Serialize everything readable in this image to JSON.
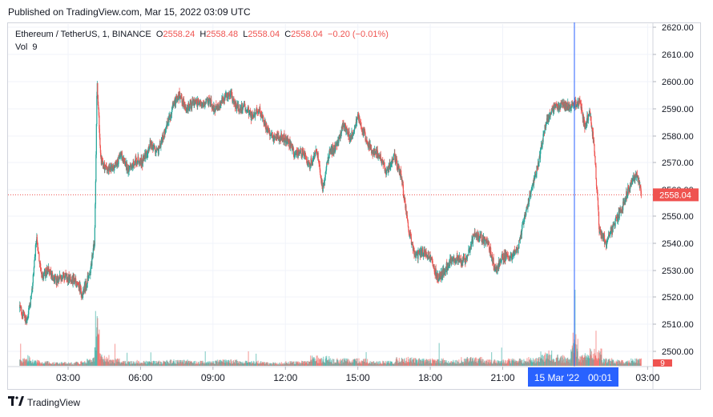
{
  "published": "Published on TradingView.com, Mar 15, 2022 03:09 UTC",
  "legend": {
    "symbol": "Ethereum / TetherUS, 1, BINANCE",
    "o_label": "O",
    "o_value": "2558.24",
    "h_label": "H",
    "h_value": "2558.48",
    "l_label": "L",
    "l_value": "2558.04",
    "c_label": "C",
    "c_value": "2558.04",
    "change": "−0.20 (−0.01%)",
    "vol_label": "Vol",
    "vol_value": "9"
  },
  "footer": {
    "brand": "TradingView",
    "logo_icon": "tradingview-logo-icon"
  },
  "colors": {
    "up": "#26a69a",
    "down": "#ef5350",
    "crosshair": "#2962ff",
    "grid": "#f0f3fa"
  },
  "chart_data": {
    "type": "candlestick",
    "interval": "1",
    "y_ticks": [
      "2620.00",
      "2610.00",
      "2600.00",
      "2590.00",
      "2580.00",
      "2570.00",
      "2560.00",
      "2550.00",
      "2540.00",
      "2530.00",
      "2520.00",
      "2510.00",
      "2500.00"
    ],
    "ylim": [
      2497,
      2623
    ],
    "x_ticks": [
      "03:00",
      "06:00",
      "09:00",
      "12:00",
      "15:00",
      "18:00",
      "21:00",
      "03:00"
    ],
    "crosshair_x_label": "15 Mar '22",
    "crosshair_x_time": "00:01",
    "last_price_label": "2558.04",
    "last_volume_label": "9",
    "close_path": [
      [
        1.0,
        2516
      ],
      [
        1.3,
        2511
      ],
      [
        1.5,
        2522
      ],
      [
        1.7,
        2543
      ],
      [
        1.9,
        2527
      ],
      [
        2.2,
        2530
      ],
      [
        2.5,
        2526
      ],
      [
        2.8,
        2528
      ],
      [
        3.0,
        2527
      ],
      [
        3.3,
        2526
      ],
      [
        3.6,
        2521
      ],
      [
        3.9,
        2529
      ],
      [
        4.1,
        2541
      ],
      [
        4.2,
        2600
      ],
      [
        4.35,
        2571
      ],
      [
        4.6,
        2567
      ],
      [
        4.9,
        2568
      ],
      [
        5.2,
        2573
      ],
      [
        5.5,
        2567
      ],
      [
        5.8,
        2571
      ],
      [
        6.1,
        2570
      ],
      [
        6.4,
        2577
      ],
      [
        6.7,
        2574
      ],
      [
        7.0,
        2581
      ],
      [
        7.3,
        2590
      ],
      [
        7.6,
        2595
      ],
      [
        7.9,
        2590
      ],
      [
        8.2,
        2592
      ],
      [
        8.5,
        2592
      ],
      [
        8.8,
        2593
      ],
      [
        9.1,
        2590
      ],
      [
        9.4,
        2593
      ],
      [
        9.7,
        2596
      ],
      [
        10.0,
        2590
      ],
      [
        10.3,
        2591
      ],
      [
        10.6,
        2587
      ],
      [
        10.9,
        2590
      ],
      [
        11.2,
        2583
      ],
      [
        11.5,
        2579
      ],
      [
        11.8,
        2580
      ],
      [
        12.1,
        2578
      ],
      [
        12.4,
        2573
      ],
      [
        12.7,
        2574
      ],
      [
        13.0,
        2569
      ],
      [
        13.3,
        2575
      ],
      [
        13.55,
        2560
      ],
      [
        13.8,
        2573
      ],
      [
        14.1,
        2576
      ],
      [
        14.4,
        2584
      ],
      [
        14.7,
        2579
      ],
      [
        15.0,
        2587
      ],
      [
        15.3,
        2580
      ],
      [
        15.6,
        2574
      ],
      [
        15.9,
        2573
      ],
      [
        16.2,
        2566
      ],
      [
        16.5,
        2573
      ],
      [
        16.8,
        2565
      ],
      [
        17.1,
        2545
      ],
      [
        17.4,
        2535
      ],
      [
        17.7,
        2537
      ],
      [
        18.0,
        2535
      ],
      [
        18.3,
        2527
      ],
      [
        18.6,
        2530
      ],
      [
        18.9,
        2535
      ],
      [
        19.2,
        2534
      ],
      [
        19.5,
        2534
      ],
      [
        19.8,
        2543
      ],
      [
        20.1,
        2542
      ],
      [
        20.4,
        2540
      ],
      [
        20.7,
        2530
      ],
      [
        21.0,
        2535
      ],
      [
        21.3,
        2535
      ],
      [
        21.6,
        2537
      ],
      [
        21.9,
        2550
      ],
      [
        22.2,
        2560
      ],
      [
        22.5,
        2571
      ],
      [
        22.8,
        2585
      ],
      [
        23.1,
        2590
      ],
      [
        23.4,
        2591
      ],
      [
        23.7,
        2591
      ],
      [
        24.0,
        2592
      ],
      [
        24.2,
        2592
      ],
      [
        24.4,
        2583
      ],
      [
        24.6,
        2589
      ],
      [
        24.8,
        2575
      ],
      [
        25.0,
        2545
      ],
      [
        25.3,
        2540
      ],
      [
        25.6,
        2547
      ],
      [
        25.9,
        2552
      ],
      [
        26.2,
        2560
      ],
      [
        26.4,
        2564
      ],
      [
        26.55,
        2566
      ],
      [
        26.75,
        2558.04
      ]
    ],
    "volume_profile": [
      [
        1.0,
        6
      ],
      [
        1.3,
        9
      ],
      [
        1.6,
        5
      ],
      [
        2.0,
        4
      ],
      [
        2.5,
        3
      ],
      [
        3.0,
        3
      ],
      [
        3.5,
        4
      ],
      [
        4.0,
        7
      ],
      [
        4.2,
        48
      ],
      [
        4.4,
        10
      ],
      [
        4.8,
        6
      ],
      [
        5.5,
        4
      ],
      [
        6.5,
        4
      ],
      [
        7.5,
        5
      ],
      [
        8.5,
        4
      ],
      [
        9.5,
        5
      ],
      [
        10.5,
        4
      ],
      [
        11.5,
        3
      ],
      [
        12.5,
        4
      ],
      [
        13.55,
        8
      ],
      [
        14.2,
        6
      ],
      [
        15.0,
        6
      ],
      [
        16.0,
        4
      ],
      [
        17.1,
        7
      ],
      [
        17.8,
        6
      ],
      [
        18.3,
        6
      ],
      [
        19.0,
        5
      ],
      [
        19.8,
        7
      ],
      [
        20.7,
        5
      ],
      [
        21.6,
        6
      ],
      [
        22.2,
        7
      ],
      [
        22.8,
        12
      ],
      [
        23.3,
        9
      ],
      [
        23.7,
        8
      ],
      [
        23.95,
        26
      ],
      [
        24.3,
        10
      ],
      [
        24.9,
        14
      ],
      [
        25.3,
        6
      ],
      [
        26.0,
        5
      ],
      [
        26.6,
        6
      ]
    ]
  }
}
